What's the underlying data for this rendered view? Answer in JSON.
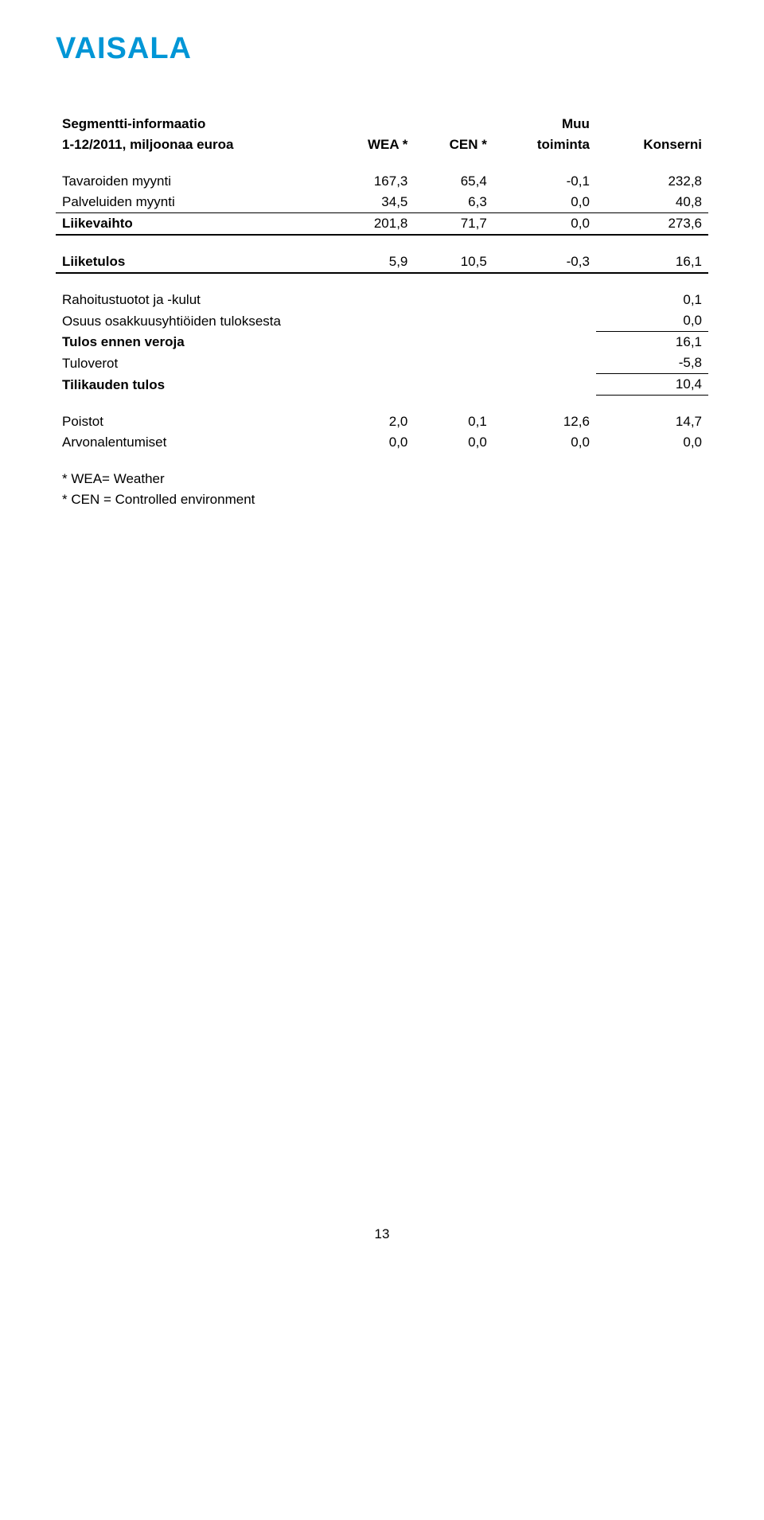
{
  "logo": "VAISALA",
  "title": "Segmentti-informaatio",
  "subhead": "1-12/2011, miljoonaa euroa",
  "col1": "WEA *",
  "col2": "CEN *",
  "col3_a": "Muu",
  "col3_b": "toiminta",
  "col4": "Konserni",
  "rows": {
    "tavaroiden": {
      "label": "Tavaroiden myynti",
      "c1": "167,3",
      "c2": "65,4",
      "c3": "-0,1",
      "c4": "232,8"
    },
    "palveluiden": {
      "label": "Palveluiden myynti",
      "c1": "34,5",
      "c2": "6,3",
      "c3": "0,0",
      "c4": "40,8"
    },
    "liikevaihto": {
      "label": "Liikevaihto",
      "c1": "201,8",
      "c2": "71,7",
      "c3": "0,0",
      "c4": "273,6"
    },
    "liiketulos": {
      "label": "Liiketulos",
      "c1": "5,9",
      "c2": "10,5",
      "c3": "-0,3",
      "c4": "16,1"
    },
    "rahoitus": {
      "label": "Rahoitustuotot ja -kulut",
      "c4": "0,1"
    },
    "osuus": {
      "label": "Osuus osakkuusyhtiöiden tuloksesta",
      "c4": "0,0"
    },
    "tulosennen": {
      "label": "Tulos ennen veroja",
      "c4": "16,1"
    },
    "tuloverot": {
      "label": "Tuloverot",
      "c4": "-5,8"
    },
    "tilikauden": {
      "label": "Tilikauden tulos",
      "c4": "10,4"
    },
    "poistot": {
      "label": "Poistot",
      "c1": "2,0",
      "c2": "0,1",
      "c3": "12,6",
      "c4": "14,7"
    },
    "arvon": {
      "label": "Arvonalentumiset",
      "c1": "0,0",
      "c2": "0,0",
      "c3": "0,0",
      "c4": "0,0"
    }
  },
  "footnote1": "* WEA= Weather",
  "footnote2": "* CEN = Controlled environment",
  "pagenum": "13",
  "colors": {
    "logo": "#0096d6",
    "text": "#000000",
    "bg": "#ffffff"
  },
  "fontsize_body": 17,
  "fontsize_logo": 38
}
